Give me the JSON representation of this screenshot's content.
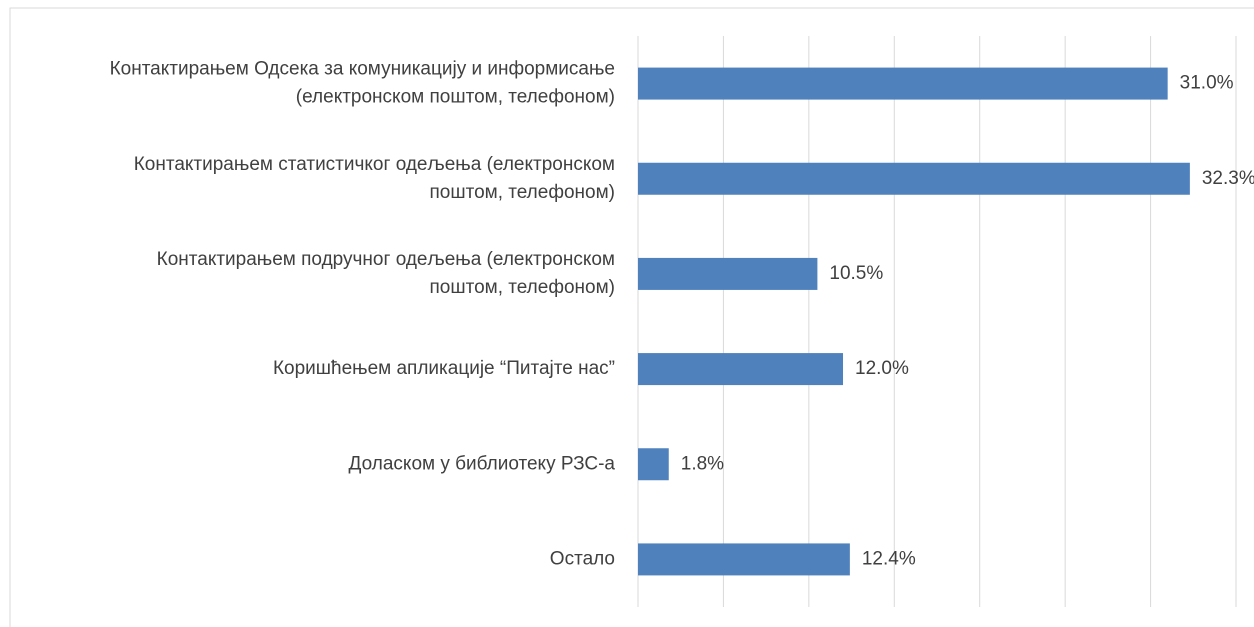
{
  "chart_data": {
    "type": "bar",
    "orientation": "horizontal",
    "categories": [
      [
        "Контактирањем Одсека за комуникацију и информисање",
        "(електронском поштом, телефоном)"
      ],
      [
        "Контактирањем статистичког одељења (електронском",
        "поштом, телефоном)"
      ],
      [
        "Контактирањем подручног одељења (електронском",
        "поштом, телефоном)"
      ],
      [
        "Коришћењем апликације “Питајте нас”"
      ],
      [
        "Доласком у библиотеку РЗС-а"
      ],
      [
        "Остало"
      ]
    ],
    "values": [
      31.0,
      32.3,
      10.5,
      12.0,
      1.8,
      12.4
    ],
    "value_labels": [
      "31.0%",
      "32.3%",
      "10.5%",
      "12.0%",
      "1.8%",
      "12.4%"
    ],
    "color": "#4f81bd",
    "xlim": [
      0,
      35
    ],
    "xticks": [
      0,
      5,
      10,
      15,
      20,
      25,
      30,
      35
    ],
    "grid": true
  }
}
